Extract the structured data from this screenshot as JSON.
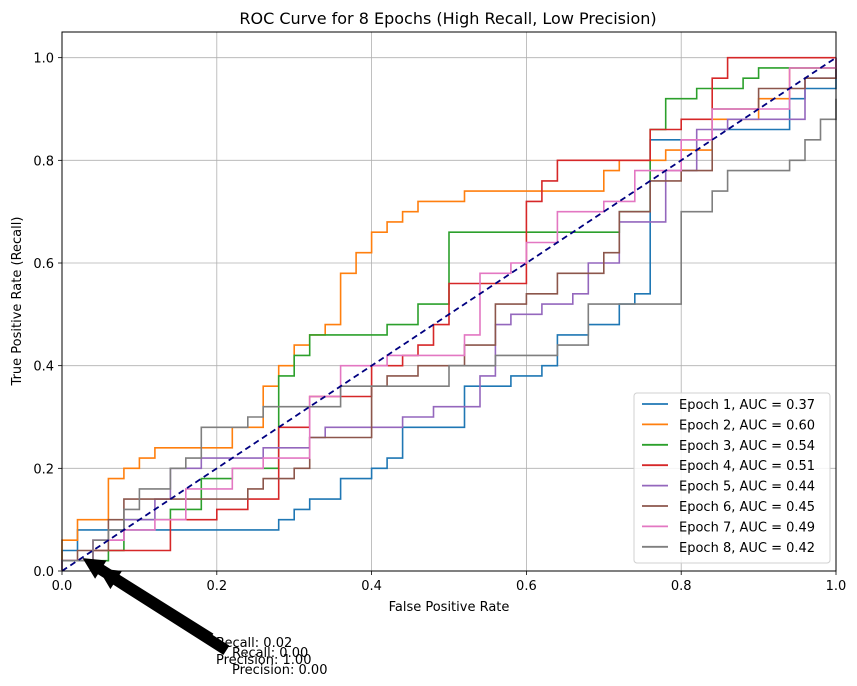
{
  "chart_data": {
    "type": "line",
    "title": "ROC Curve for 8 Epochs (High Recall, Low Precision)",
    "xlabel": "False Positive Rate",
    "ylabel": "True Positive Rate (Recall)",
    "xlim": [
      0.0,
      1.0
    ],
    "ylim": [
      0.0,
      1.05
    ],
    "x_ticks": [
      "0.0",
      "0.2",
      "0.4",
      "0.6",
      "0.8",
      "1.0"
    ],
    "y_ticks": [
      "0.0",
      "0.2",
      "0.4",
      "0.6",
      "0.8",
      "1.0"
    ],
    "grid": true,
    "legend_position": "lower right",
    "series": [
      {
        "name": "Epoch 1, AUC = 0.37",
        "color": "#1f77b4",
        "x": [
          0,
          0,
          0.02,
          0.02,
          0.04,
          0.04,
          0.28,
          0.28,
          0.3,
          0.3,
          0.32,
          0.32,
          0.36,
          0.36,
          0.4,
          0.4,
          0.42,
          0.42,
          0.44,
          0.44,
          0.52,
          0.52,
          0.58,
          0.58,
          0.62,
          0.62,
          0.64,
          0.64,
          0.68,
          0.68,
          0.72,
          0.72,
          0.74,
          0.74,
          0.76,
          0.76,
          0.84,
          0.84,
          0.9,
          0.9,
          0.94,
          0.94,
          0.96,
          0.96,
          1.0,
          1.0
        ],
        "y": [
          0,
          0.04,
          0.04,
          0.08,
          0.08,
          0.08,
          0.08,
          0.1,
          0.1,
          0.12,
          0.12,
          0.14,
          0.14,
          0.18,
          0.18,
          0.2,
          0.2,
          0.22,
          0.22,
          0.28,
          0.28,
          0.36,
          0.36,
          0.38,
          0.38,
          0.4,
          0.4,
          0.46,
          0.46,
          0.48,
          0.48,
          0.52,
          0.52,
          0.54,
          0.54,
          0.84,
          0.84,
          0.86,
          0.86,
          0.86,
          0.86,
          0.92,
          0.92,
          0.94,
          0.94,
          1.0
        ]
      },
      {
        "name": "Epoch 2, AUC = 0.60",
        "color": "#ff7f0e",
        "x": [
          0,
          0,
          0.02,
          0.02,
          0.06,
          0.06,
          0.08,
          0.08,
          0.1,
          0.1,
          0.12,
          0.12,
          0.22,
          0.22,
          0.26,
          0.26,
          0.28,
          0.28,
          0.3,
          0.3,
          0.32,
          0.32,
          0.34,
          0.34,
          0.36,
          0.36,
          0.38,
          0.38,
          0.4,
          0.4,
          0.42,
          0.42,
          0.44,
          0.44,
          0.46,
          0.46,
          0.52,
          0.52,
          0.56,
          0.56,
          0.7,
          0.7,
          0.72,
          0.72,
          0.78,
          0.78,
          0.84,
          0.84,
          0.9,
          0.9,
          0.94,
          0.94,
          1.0,
          1.0
        ],
        "y": [
          0,
          0.06,
          0.06,
          0.1,
          0.1,
          0.18,
          0.18,
          0.2,
          0.2,
          0.22,
          0.22,
          0.24,
          0.24,
          0.28,
          0.28,
          0.36,
          0.36,
          0.4,
          0.4,
          0.44,
          0.44,
          0.46,
          0.46,
          0.48,
          0.48,
          0.58,
          0.58,
          0.62,
          0.62,
          0.66,
          0.66,
          0.68,
          0.68,
          0.7,
          0.7,
          0.72,
          0.72,
          0.74,
          0.74,
          0.74,
          0.74,
          0.78,
          0.78,
          0.8,
          0.8,
          0.82,
          0.82,
          0.88,
          0.88,
          0.92,
          0.92,
          0.98,
          0.98,
          1.0
        ]
      },
      {
        "name": "Epoch 3, AUC = 0.54",
        "color": "#2ca02c",
        "x": [
          0,
          0,
          0.06,
          0.06,
          0.08,
          0.08,
          0.14,
          0.14,
          0.18,
          0.18,
          0.22,
          0.22,
          0.28,
          0.28,
          0.3,
          0.3,
          0.32,
          0.32,
          0.42,
          0.42,
          0.46,
          0.46,
          0.5,
          0.5,
          0.72,
          0.72,
          0.76,
          0.76,
          0.78,
          0.78,
          0.82,
          0.82,
          0.88,
          0.88,
          0.9,
          0.9,
          0.96,
          0.96,
          1.0,
          1.0
        ],
        "y": [
          0,
          0.02,
          0.02,
          0.04,
          0.04,
          0.1,
          0.1,
          0.12,
          0.12,
          0.18,
          0.18,
          0.2,
          0.2,
          0.38,
          0.38,
          0.42,
          0.42,
          0.46,
          0.46,
          0.48,
          0.48,
          0.52,
          0.52,
          0.66,
          0.66,
          0.7,
          0.7,
          0.86,
          0.86,
          0.92,
          0.92,
          0.94,
          0.94,
          0.96,
          0.96,
          0.98,
          0.98,
          0.98,
          0.98,
          1.0
        ]
      },
      {
        "name": "Epoch 4, AUC = 0.51",
        "color": "#d62728",
        "x": [
          0,
          0,
          0.04,
          0.04,
          0.1,
          0.1,
          0.14,
          0.14,
          0.16,
          0.16,
          0.2,
          0.2,
          0.24,
          0.24,
          0.28,
          0.28,
          0.32,
          0.32,
          0.4,
          0.4,
          0.44,
          0.44,
          0.46,
          0.46,
          0.48,
          0.48,
          0.5,
          0.5,
          0.6,
          0.6,
          0.62,
          0.62,
          0.64,
          0.64,
          0.76,
          0.76,
          0.78,
          0.78,
          0.8,
          0.8,
          0.84,
          0.84,
          0.86,
          0.86,
          0.94,
          0.94,
          1.0,
          1.0
        ],
        "y": [
          0,
          0.02,
          0.02,
          0.04,
          0.04,
          0.04,
          0.04,
          0.1,
          0.1,
          0.1,
          0.1,
          0.12,
          0.12,
          0.14,
          0.14,
          0.28,
          0.28,
          0.34,
          0.34,
          0.4,
          0.4,
          0.42,
          0.42,
          0.44,
          0.44,
          0.48,
          0.48,
          0.56,
          0.56,
          0.72,
          0.72,
          0.76,
          0.76,
          0.8,
          0.8,
          0.86,
          0.86,
          0.86,
          0.86,
          0.88,
          0.88,
          0.96,
          0.96,
          1.0,
          1.0,
          1.0,
          1.0,
          1.0
        ]
      },
      {
        "name": "Epoch 5, AUC = 0.44",
        "color": "#9467bd",
        "x": [
          0,
          0,
          0.04,
          0.04,
          0.08,
          0.08,
          0.12,
          0.12,
          0.14,
          0.14,
          0.18,
          0.18,
          0.26,
          0.26,
          0.28,
          0.28,
          0.32,
          0.32,
          0.34,
          0.34,
          0.44,
          0.44,
          0.48,
          0.48,
          0.54,
          0.54,
          0.56,
          0.56,
          0.58,
          0.58,
          0.62,
          0.62,
          0.66,
          0.66,
          0.68,
          0.68,
          0.72,
          0.72,
          0.78,
          0.78,
          0.82,
          0.82,
          0.86,
          0.86,
          0.9,
          0.9,
          0.96,
          0.96,
          1.0,
          1.0
        ],
        "y": [
          0,
          0.02,
          0.02,
          0.06,
          0.06,
          0.1,
          0.1,
          0.14,
          0.14,
          0.2,
          0.2,
          0.22,
          0.22,
          0.24,
          0.24,
          0.24,
          0.24,
          0.26,
          0.26,
          0.28,
          0.28,
          0.3,
          0.3,
          0.32,
          0.32,
          0.38,
          0.38,
          0.48,
          0.48,
          0.5,
          0.5,
          0.52,
          0.52,
          0.54,
          0.54,
          0.6,
          0.6,
          0.68,
          0.68,
          0.78,
          0.78,
          0.86,
          0.86,
          0.88,
          0.88,
          0.88,
          0.88,
          0.96,
          0.96,
          1.0
        ]
      },
      {
        "name": "Epoch 6, AUC = 0.45",
        "color": "#8c564b",
        "x": [
          0,
          0,
          0.02,
          0.02,
          0.06,
          0.06,
          0.08,
          0.08,
          0.12,
          0.12,
          0.16,
          0.16,
          0.24,
          0.24,
          0.26,
          0.26,
          0.3,
          0.3,
          0.32,
          0.32,
          0.4,
          0.4,
          0.42,
          0.42,
          0.46,
          0.46,
          0.52,
          0.52,
          0.56,
          0.56,
          0.6,
          0.6,
          0.64,
          0.64,
          0.7,
          0.7,
          0.72,
          0.72,
          0.76,
          0.76,
          0.8,
          0.8,
          0.84,
          0.84,
          0.9,
          0.9,
          0.96,
          0.96,
          1.0,
          1.0
        ],
        "y": [
          0,
          0.02,
          0.02,
          0.04,
          0.04,
          0.1,
          0.1,
          0.14,
          0.14,
          0.14,
          0.14,
          0.14,
          0.14,
          0.16,
          0.16,
          0.18,
          0.18,
          0.2,
          0.2,
          0.26,
          0.26,
          0.36,
          0.36,
          0.38,
          0.38,
          0.4,
          0.4,
          0.44,
          0.44,
          0.52,
          0.52,
          0.54,
          0.54,
          0.58,
          0.58,
          0.62,
          0.62,
          0.7,
          0.7,
          0.76,
          0.76,
          0.78,
          0.78,
          0.9,
          0.9,
          0.94,
          0.94,
          0.96,
          0.96,
          1.0
        ]
      },
      {
        "name": "Epoch 7, AUC = 0.49",
        "color": "#e377c2",
        "x": [
          0,
          0,
          0.04,
          0.04,
          0.08,
          0.08,
          0.12,
          0.12,
          0.16,
          0.16,
          0.22,
          0.22,
          0.26,
          0.26,
          0.32,
          0.32,
          0.36,
          0.36,
          0.42,
          0.42,
          0.52,
          0.52,
          0.54,
          0.54,
          0.58,
          0.58,
          0.6,
          0.6,
          0.64,
          0.64,
          0.7,
          0.7,
          0.74,
          0.74,
          0.8,
          0.8,
          0.84,
          0.84,
          0.94,
          0.94,
          1.0,
          1.0
        ],
        "y": [
          0,
          0.02,
          0.02,
          0.06,
          0.06,
          0.08,
          0.08,
          0.1,
          0.1,
          0.16,
          0.16,
          0.2,
          0.2,
          0.22,
          0.22,
          0.34,
          0.34,
          0.4,
          0.4,
          0.42,
          0.42,
          0.46,
          0.46,
          0.58,
          0.58,
          0.6,
          0.6,
          0.64,
          0.64,
          0.7,
          0.7,
          0.72,
          0.72,
          0.78,
          0.78,
          0.84,
          0.84,
          0.9,
          0.9,
          0.98,
          0.98,
          1.0
        ]
      },
      {
        "name": "Epoch 8, AUC = 0.42",
        "color": "#7f7f7f",
        "x": [
          0,
          0,
          0.04,
          0.04,
          0.06,
          0.06,
          0.08,
          0.08,
          0.1,
          0.1,
          0.14,
          0.14,
          0.16,
          0.16,
          0.18,
          0.18,
          0.22,
          0.22,
          0.24,
          0.24,
          0.26,
          0.26,
          0.3,
          0.3,
          0.36,
          0.36,
          0.5,
          0.5,
          0.56,
          0.56,
          0.64,
          0.64,
          0.68,
          0.68,
          0.76,
          0.76,
          0.8,
          0.8,
          0.84,
          0.84,
          0.86,
          0.86,
          0.94,
          0.94,
          0.96,
          0.96,
          0.98,
          0.98,
          1.0,
          1.0
        ],
        "y": [
          0,
          0.02,
          0.02,
          0.06,
          0.06,
          0.08,
          0.08,
          0.12,
          0.12,
          0.16,
          0.16,
          0.2,
          0.2,
          0.22,
          0.22,
          0.28,
          0.28,
          0.28,
          0.28,
          0.3,
          0.3,
          0.32,
          0.32,
          0.32,
          0.32,
          0.36,
          0.36,
          0.4,
          0.4,
          0.42,
          0.42,
          0.44,
          0.44,
          0.52,
          0.52,
          0.52,
          0.52,
          0.7,
          0.7,
          0.74,
          0.74,
          0.78,
          0.78,
          0.8,
          0.8,
          0.84,
          0.84,
          0.88,
          0.88,
          0.92
        ]
      }
    ],
    "reference_line": {
      "x": [
        0,
        1
      ],
      "y": [
        0,
        1
      ],
      "color": "#000080",
      "style": "dashed"
    },
    "annotations": [
      {
        "text_lines": [
          "Recall: 0.02",
          "Precision: 1.00"
        ],
        "point": [
          0.02,
          0.02
        ]
      },
      {
        "text_lines": [
          "Recall: 0.00",
          "Precision: 0.00"
        ],
        "point": [
          0.04,
          0.0
        ]
      }
    ]
  }
}
